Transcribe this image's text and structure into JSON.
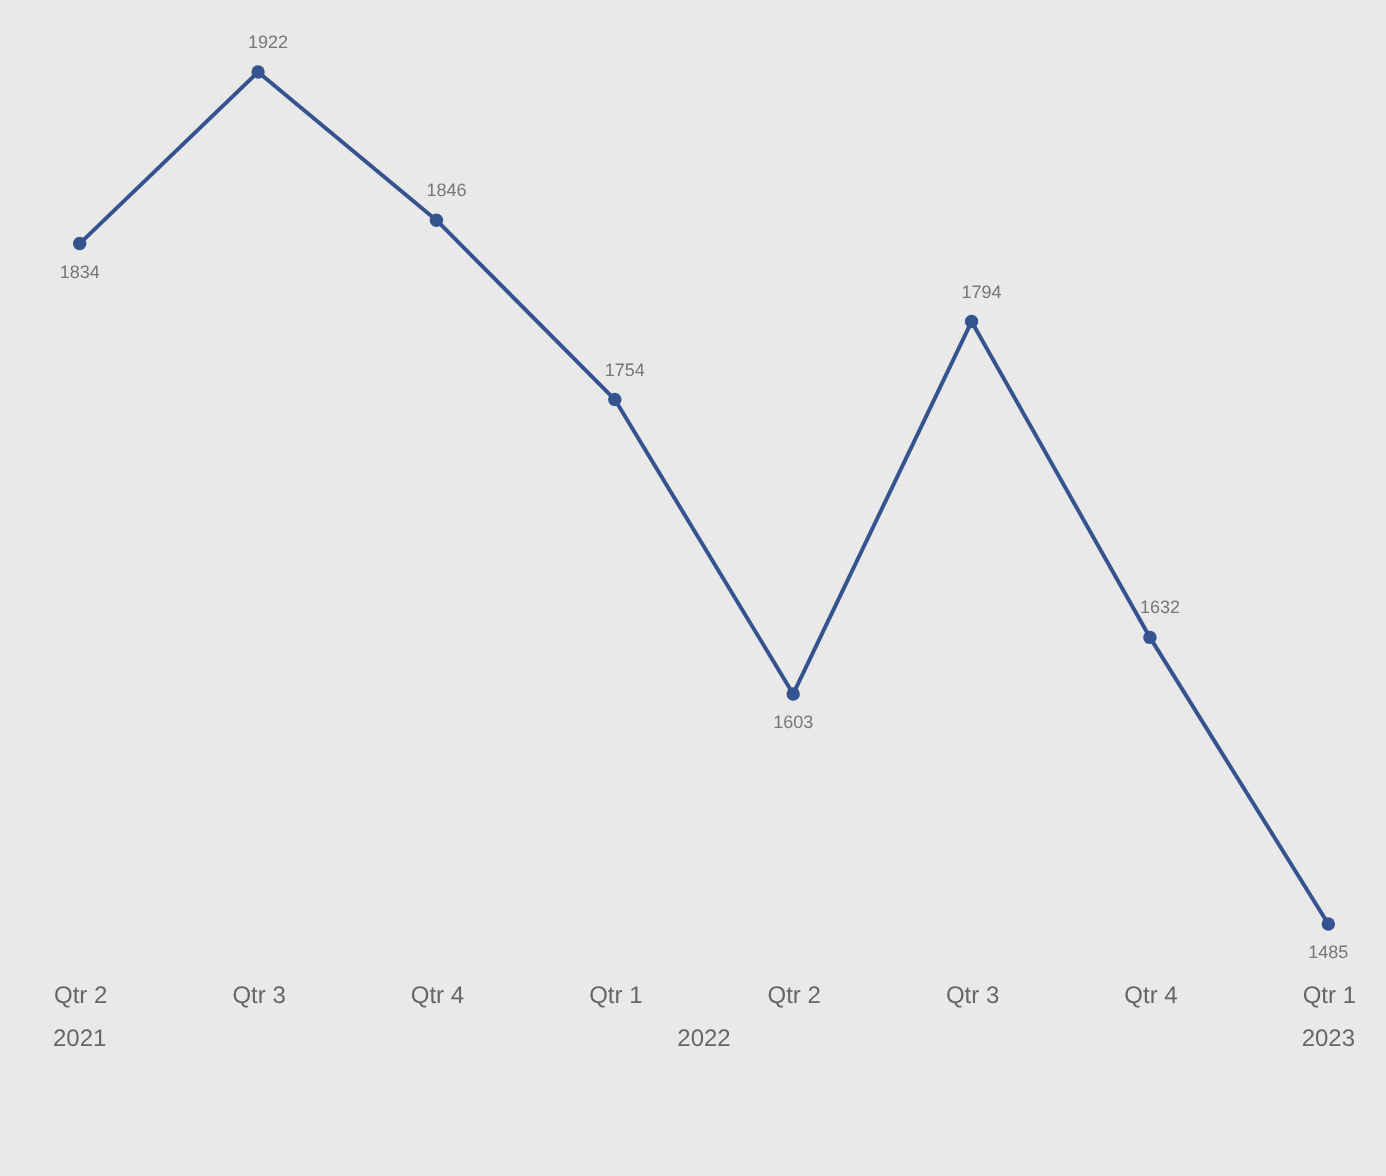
{
  "chart_data": {
    "type": "line",
    "categories": [
      "Qtr 2",
      "Qtr 3",
      "Qtr 4",
      "Qtr 1",
      "Qtr 2",
      "Qtr 3",
      "Qtr 4",
      "Qtr 1"
    ],
    "series": [
      {
        "color": "#34538f",
        "values": [
          1834,
          1922,
          1846,
          1754,
          1603,
          1794,
          1632,
          1485
        ]
      }
    ],
    "data_labels": true,
    "marker": "circle",
    "line_style": "solid",
    "annotations": [
      "2021",
      "2022",
      "2023"
    ]
  }
}
